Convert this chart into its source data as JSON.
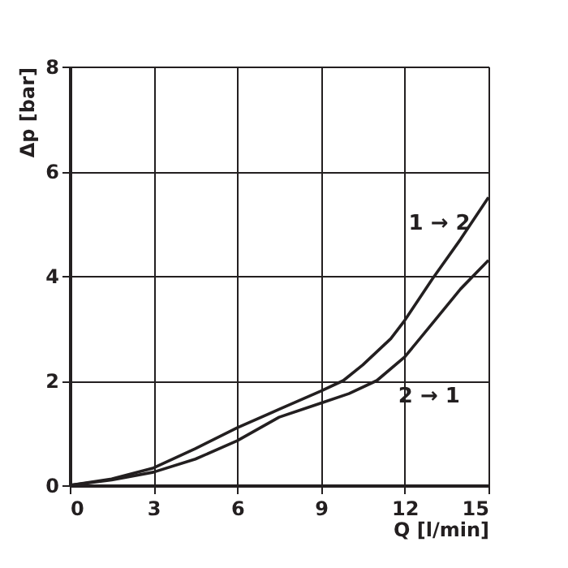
{
  "chart_data": {
    "type": "line",
    "xlabel": "Q [l/min]",
    "ylabel": "Δp [bar]",
    "xlim": [
      0,
      15
    ],
    "xticks": [
      0,
      3,
      6,
      9,
      12,
      15
    ],
    "ylim": [
      0,
      8
    ],
    "yticks": [
      0,
      2,
      4,
      6,
      8
    ],
    "grid": true,
    "legend": false,
    "marker": "none",
    "line_style": "solid",
    "series": [
      {
        "name": "1 → 2",
        "color": "#231f20",
        "x": [
          0,
          1.5,
          3,
          4.5,
          6,
          7.5,
          9,
          9.8,
          10.5,
          11.5,
          12,
          13,
          14,
          15
        ],
        "values": [
          0,
          0.12,
          0.33,
          0.7,
          1.1,
          1.45,
          1.8,
          2.0,
          2.3,
          2.8,
          3.15,
          3.95,
          4.7,
          5.5
        ]
      },
      {
        "name": "2 → 1",
        "color": "#231f20",
        "x": [
          0,
          1.5,
          3,
          4.5,
          6,
          7.5,
          9,
          10,
          11,
          12,
          13,
          14,
          15
        ],
        "values": [
          0,
          0.1,
          0.25,
          0.5,
          0.85,
          1.3,
          1.57,
          1.75,
          2.0,
          2.45,
          3.1,
          3.75,
          4.3
        ]
      }
    ]
  }
}
